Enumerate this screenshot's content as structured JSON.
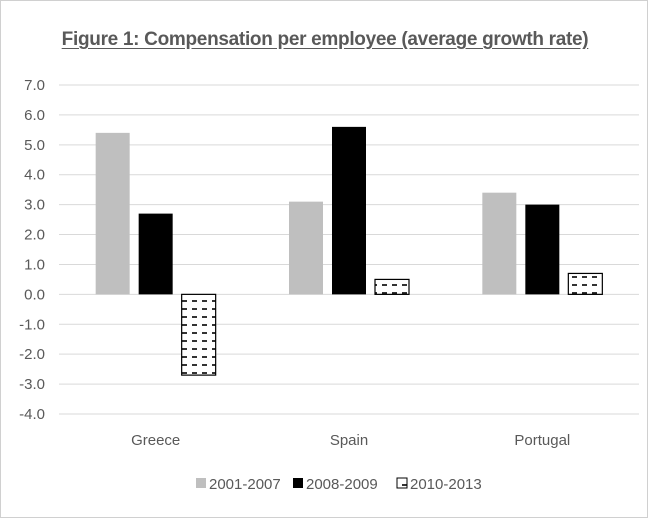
{
  "chart_data": {
    "type": "bar",
    "title": "Figure 1: Compensation per employee (average growth rate)",
    "xlabel": "",
    "ylabel": "",
    "categories": [
      "Greece",
      "Spain",
      "Portugal"
    ],
    "series": [
      {
        "name": "2001-2007",
        "values": [
          5.4,
          3.1,
          3.4
        ],
        "color": "#bfbfbf",
        "pattern": "solid"
      },
      {
        "name": "2008-2009",
        "values": [
          2.7,
          5.6,
          3.0
        ],
        "color": "#000000",
        "pattern": "solid"
      },
      {
        "name": "2010-2013",
        "values": [
          -2.7,
          0.5,
          0.7
        ],
        "color": "#000000",
        "pattern": "dashed-horizontal"
      }
    ],
    "ylim": [
      -4.0,
      7.0
    ],
    "yticks": [
      "7.0",
      "6.0",
      "5.0",
      "4.0",
      "3.0",
      "2.0",
      "1.0",
      "0.0",
      "-1.0",
      "-2.0",
      "-3.0",
      "-4.0"
    ],
    "ytick_values": [
      7,
      6,
      5,
      4,
      3,
      2,
      1,
      0,
      -1,
      -2,
      -3,
      -4
    ],
    "grid": true,
    "legend_position": "bottom",
    "gridline_color": "#d9d9d9"
  }
}
